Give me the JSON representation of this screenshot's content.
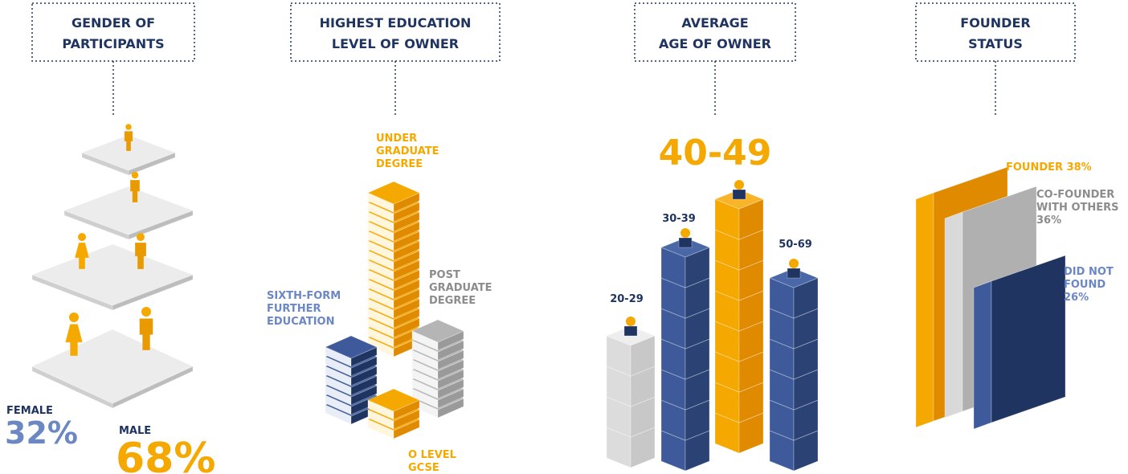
{
  "gender": {
    "title": [
      "GENDER OF",
      "PARTICIPANTS"
    ],
    "female": {
      "label": "FEMALE",
      "percent": "32%"
    },
    "male": {
      "label": "MALE",
      "percent": "68%"
    }
  },
  "education": {
    "title": [
      "HIGHEST EDUCATION",
      "LEVEL OF OWNER"
    ],
    "undergraduate": [
      "UNDER",
      "GRADUATE",
      "DEGREE"
    ],
    "postgraduate": [
      "POST",
      "GRADUATE",
      "DEGREE"
    ],
    "sixth_form": [
      "SIXTH-FORM",
      "FURTHER",
      "EDUCATION"
    ],
    "o_level": [
      "O LEVEL",
      "GCSE"
    ]
  },
  "age": {
    "title": [
      "AVERAGE",
      "AGE OF OWNER"
    ],
    "highlight": "40-49",
    "groups": [
      "20-29",
      "30-39",
      "50-69"
    ]
  },
  "founder": {
    "title": [
      "FOUNDER",
      "STATUS"
    ],
    "founder": "FOUNDER 38%",
    "co_founder": [
      "CO-FOUNDER",
      "WITH OTHERS",
      "36%"
    ],
    "did_not_found": [
      "DID NOT",
      "FOUND",
      "26%"
    ]
  }
}
